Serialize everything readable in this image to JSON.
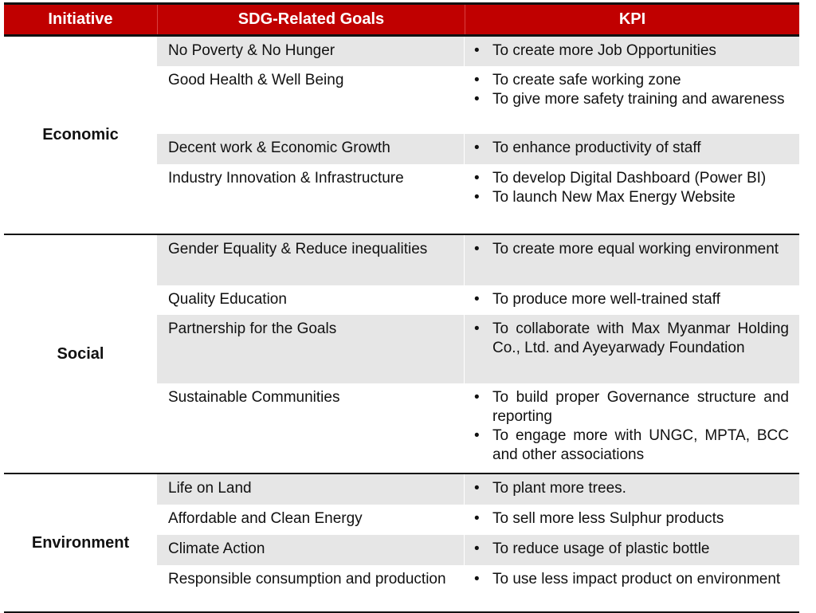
{
  "header": {
    "initiative": "Initiative",
    "goals": "SDG-Related Goals",
    "kpi": "KPI"
  },
  "groups": [
    {
      "name": "Economic",
      "rows": [
        {
          "goal": "No Poverty & No Hunger",
          "kpis": [
            "To create more Job Opportunities"
          ]
        },
        {
          "goal": "Good Health & Well Being",
          "kpis": [
            "To create safe working zone",
            "To give more safety training and awareness"
          ]
        },
        {
          "goal": "Decent work & Economic Growth",
          "kpis": [
            "To enhance productivity of staff"
          ]
        },
        {
          "goal": "Industry Innovation & Infrastructure",
          "kpis": [
            "To develop Digital Dashboard (Power BI)",
            "To launch New Max Energy Website"
          ]
        }
      ]
    },
    {
      "name": "Social",
      "rows": [
        {
          "goal": "Gender Equality & Reduce inequalities",
          "kpis": [
            "To create more equal working environment"
          ]
        },
        {
          "goal": "Quality Education",
          "kpis": [
            "To produce more well-trained staff"
          ]
        },
        {
          "goal": "Partnership for the Goals",
          "kpis": [
            "To collaborate with Max Myanmar Holding Co., Ltd. and Ayeyarwady Foundation"
          ]
        },
        {
          "goal": "Sustainable Communities",
          "kpis": [
            "To build proper Governance structure and reporting",
            "To engage more with UNGC, MPTA, BCC and other associations"
          ]
        }
      ]
    },
    {
      "name": "Environment",
      "rows": [
        {
          "goal": "Life on Land",
          "kpis": [
            "To plant more trees."
          ]
        },
        {
          "goal": "Affordable and Clean Energy",
          "kpis": [
            "To sell more less Sulphur products"
          ]
        },
        {
          "goal": "Climate Action",
          "kpis": [
            "To reduce usage of plastic bottle"
          ]
        },
        {
          "goal": "Responsible consumption and production",
          "kpis": [
            "To use less impact product on environment"
          ]
        }
      ]
    }
  ],
  "bullet": "•",
  "colors": {
    "header_bg": "#c00000",
    "row_alt": "#e6e6e6"
  }
}
